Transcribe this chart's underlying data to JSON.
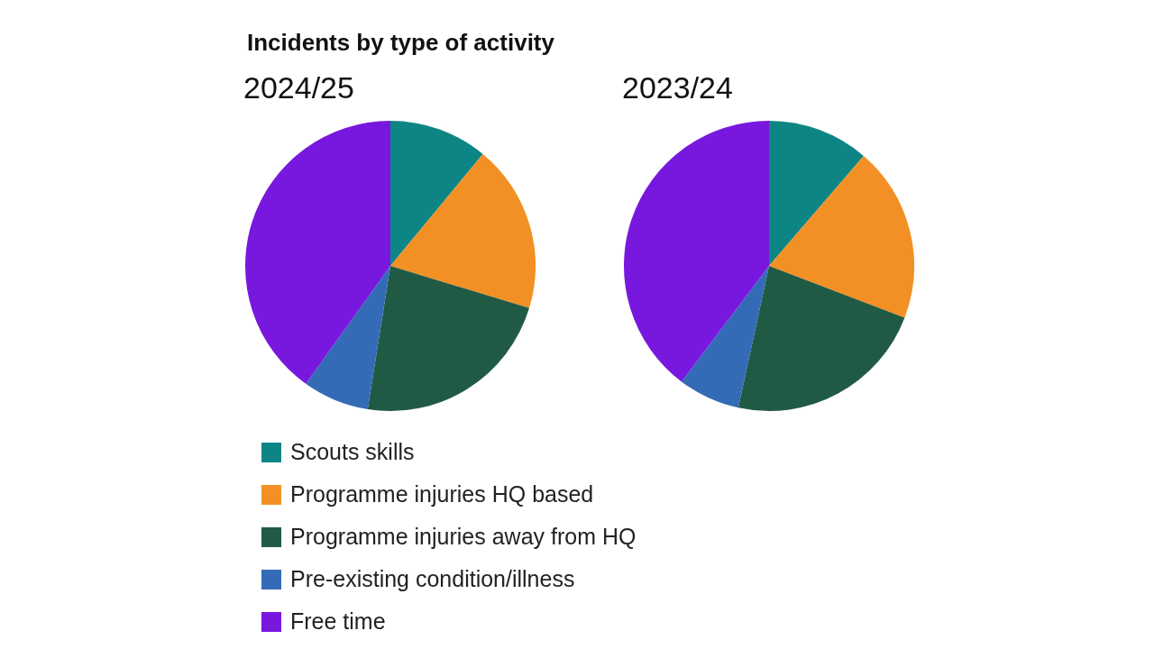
{
  "chart_data": [
    {
      "type": "pie",
      "title": "Incidents by type of activity",
      "subtitle": "2024/25",
      "categories": [
        "Scouts skills",
        "Programme injuries HQ based",
        "Programme injuries away from HQ",
        "Pre-existing condition/illness",
        "Free time"
      ],
      "values": [
        11,
        18.7,
        22.8,
        7.4,
        40.1
      ],
      "colors": [
        "#0e8585",
        "#f29025",
        "#215a44",
        "#336bb7",
        "#7818de"
      ],
      "legend": "bottom"
    },
    {
      "type": "pie",
      "subtitle": "2023/24",
      "categories": [
        null,
        null,
        null,
        null,
        null
      ],
      "values": [
        11.3,
        19.5,
        22.6,
        6.9,
        39.7
      ],
      "colors": [
        "#0e8585",
        "#f29025",
        "#215a44",
        "#336bb7",
        "#7818de"
      ]
    }
  ]
}
